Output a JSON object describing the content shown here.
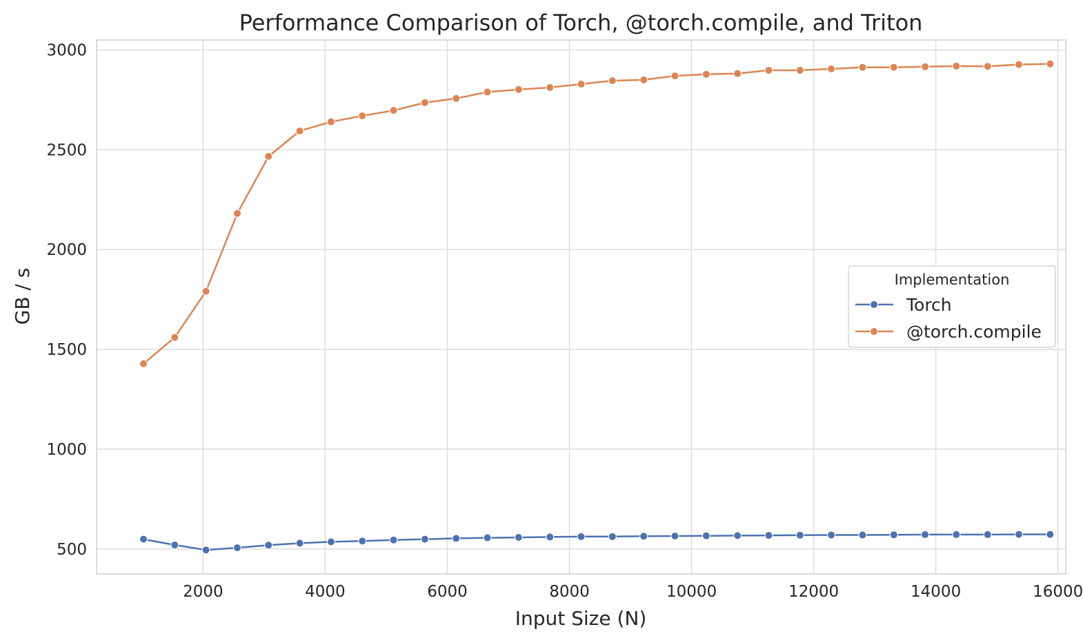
{
  "chart_data": {
    "type": "line",
    "title": "Performance Comparison of Torch, @torch.compile, and Triton",
    "xlabel": "Input Size (N)",
    "ylabel": "GB / s",
    "xlim": [
      256,
      16128
    ],
    "ylim": [
      375,
      3050
    ],
    "xticks": [
      2000,
      4000,
      6000,
      8000,
      10000,
      12000,
      14000,
      16000
    ],
    "yticks": [
      500,
      1000,
      1500,
      2000,
      2500,
      3000
    ],
    "grid": true,
    "legend": {
      "title": "Implementation",
      "placement": "right"
    },
    "x": [
      1024,
      1536,
      2048,
      2560,
      3072,
      3584,
      4096,
      4608,
      5120,
      5632,
      6144,
      6656,
      7168,
      7680,
      8192,
      8704,
      9216,
      9728,
      10240,
      10752,
      11264,
      11776,
      12288,
      12800,
      13312,
      13824,
      14336,
      14848,
      15360,
      15872
    ],
    "series": [
      {
        "name": "Torch",
        "color": "#4c72b0",
        "values": [
          549,
          520,
          495,
          506,
          519,
          529,
          536,
          540,
          545,
          549,
          553,
          556,
          558,
          560,
          562,
          562,
          564,
          565,
          566,
          567,
          568,
          569,
          570,
          570,
          571,
          572,
          572,
          572,
          573,
          573
        ]
      },
      {
        "name": "@torch.compile",
        "color": "#dd8452",
        "values": [
          1428,
          1560,
          1791,
          2181,
          2467,
          2594,
          2640,
          2670,
          2697,
          2736,
          2757,
          2789,
          2802,
          2812,
          2829,
          2846,
          2850,
          2870,
          2878,
          2882,
          2898,
          2898,
          2905,
          2913,
          2913,
          2916,
          2919,
          2918,
          2927,
          2930
        ]
      }
    ]
  }
}
